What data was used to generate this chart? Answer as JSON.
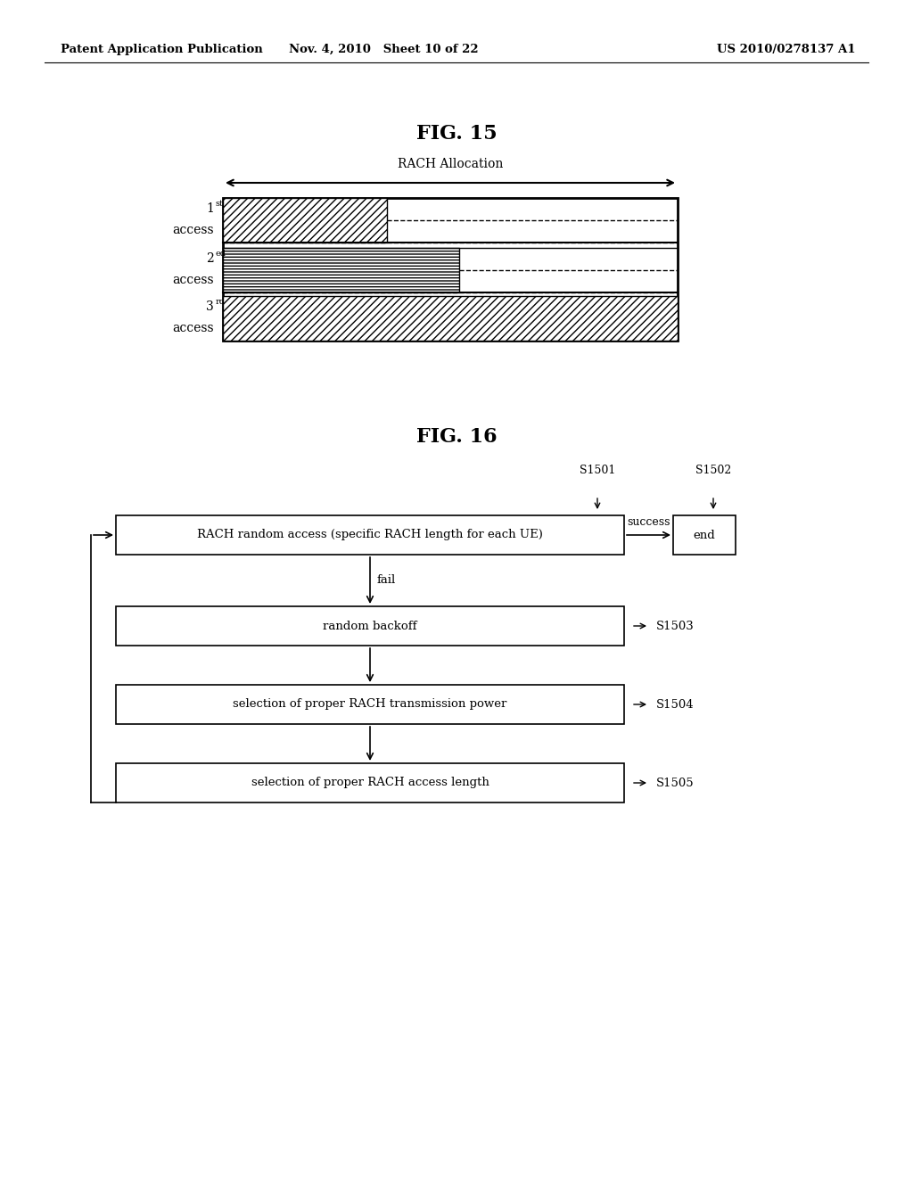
{
  "bg_color": "#ffffff",
  "header_left": "Patent Application Publication",
  "header_mid": "Nov. 4, 2010   Sheet 10 of 22",
  "header_right": "US 2010/0278137 A1",
  "fig15_title": "FIG. 15",
  "fig16_title": "FIG. 16",
  "rach_alloc_label": "RACH Allocation",
  "box1_label": "RACH random access (specific RACH length for each UE)",
  "box2_label": "random backoff",
  "box3_label": "selection of proper RACH transmission power",
  "box4_label": "selection of proper RACH access length",
  "end_label": "end",
  "success_label": "success",
  "fail_label": "fail",
  "s1501_label": "S1501",
  "s1502_label": "S1502",
  "s1503_label": "S1503",
  "s1504_label": "S1504",
  "s1505_label": "S1505"
}
